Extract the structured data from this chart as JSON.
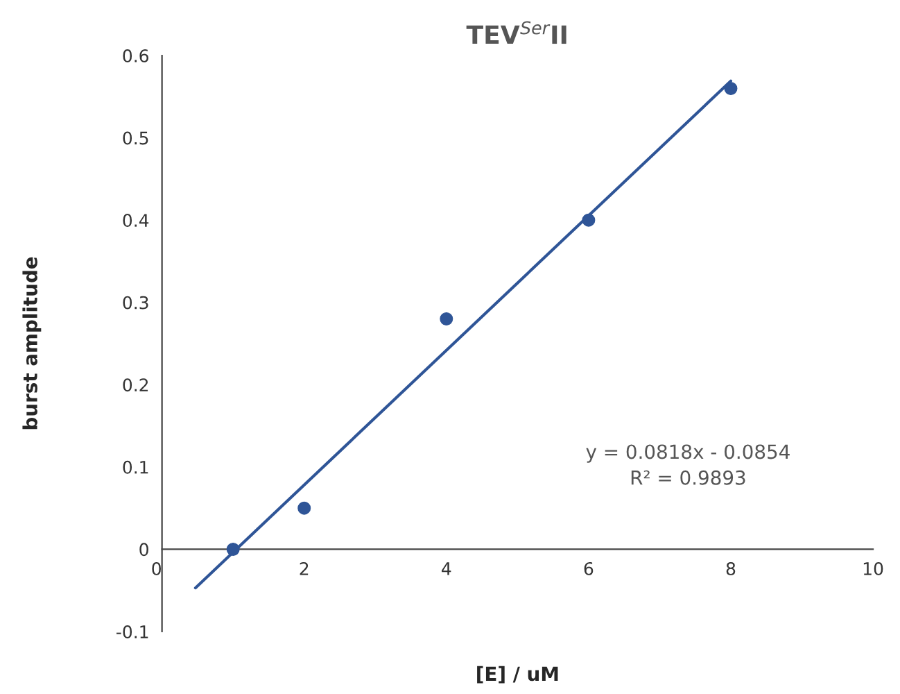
{
  "chart_data": {
    "type": "scatter",
    "title": "TEV$^{Ser}$II",
    "xlabel": "[E] / uM",
    "ylabel": "burst amplitude",
    "series": [
      {
        "color": "#2f5597",
        "marker": "circle",
        "x": [
          1,
          2,
          4,
          6,
          8
        ],
        "values": [
          0.0,
          0.05,
          0.28,
          0.4,
          0.56
        ]
      },
      {
        "type": "line",
        "color": "#2f5597",
        "marker": "none",
        "line_style": "solid",
        "x": [
          0.47,
          8
        ],
        "values": [
          -0.047,
          0.569
        ]
      }
    ],
    "xlim": [
      0,
      10
    ],
    "xticks": [
      0,
      2,
      4,
      6,
      8,
      10
    ],
    "ylim": [
      -0.1,
      0.6
    ],
    "yticks": [
      -0.1,
      0,
      0.1,
      0.2,
      0.3,
      0.4,
      0.5,
      0.6
    ],
    "annotations": [
      "y = 0.0818x - 0.0854",
      "R² = 0.9893"
    ],
    "grid": false,
    "legend": false
  }
}
